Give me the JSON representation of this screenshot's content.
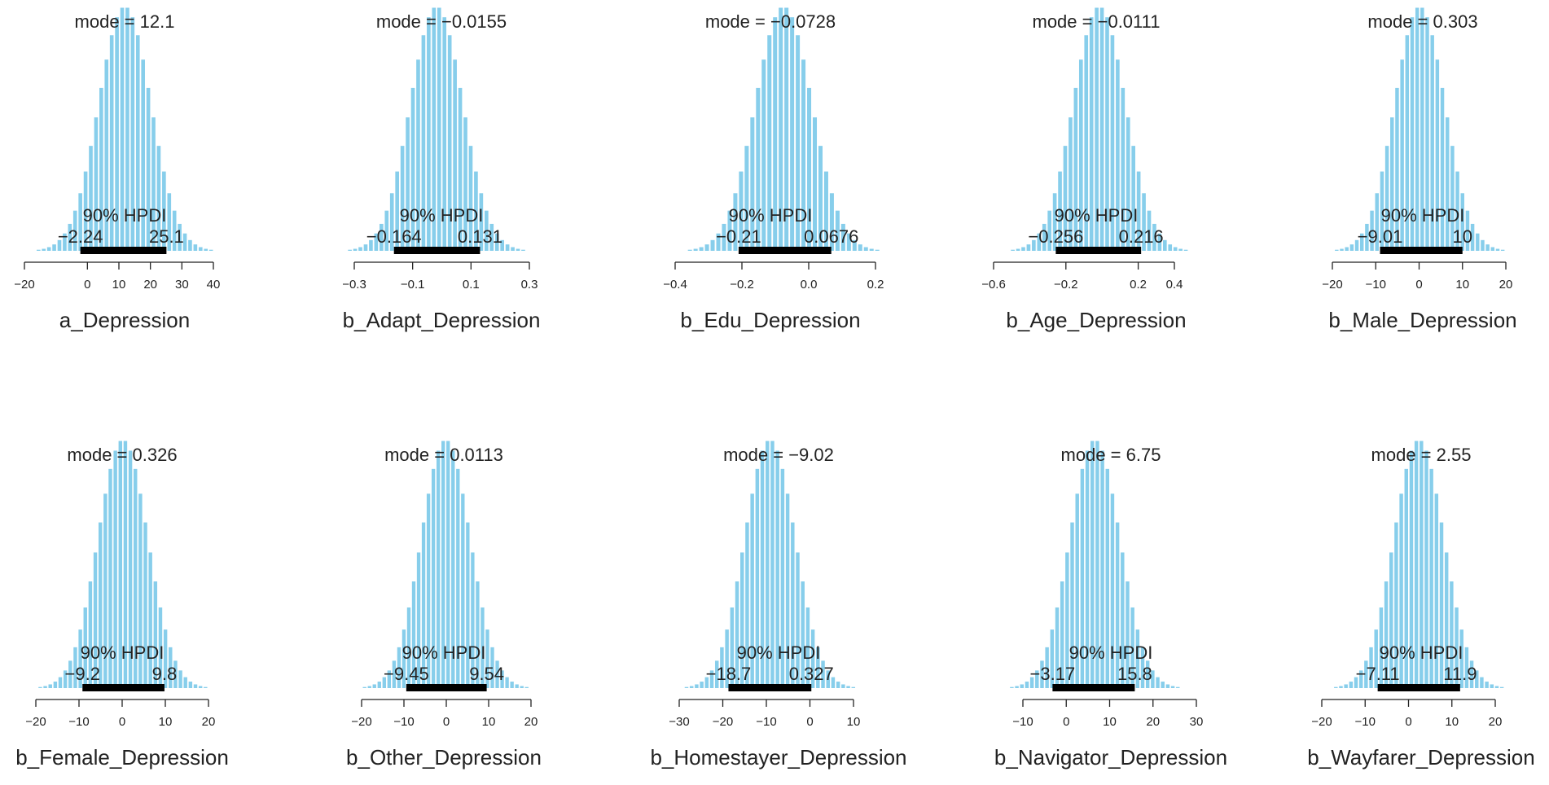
{
  "chart_data": [
    {
      "type": "histogram",
      "xlabel": "a_Depression",
      "mode_text": "mode = 12.1",
      "mode": 12.1,
      "hpdi_label": "90% HPDI",
      "hpdi_low_text": "−2.24",
      "hpdi_high_text": "25.1",
      "hpdi": [
        -2.24,
        25.1
      ],
      "xlim": [
        -20,
        40
      ],
      "xticks": [
        -20,
        0,
        10,
        20,
        30,
        40
      ],
      "xtick_labels": [
        "−20",
        "0",
        "10",
        "20",
        "30",
        "40"
      ],
      "sd": 8.3
    },
    {
      "type": "histogram",
      "xlabel": "b_Adapt_Depression",
      "mode_text": "mode = −0.0155",
      "mode": -0.0155,
      "hpdi_label": "90% HPDI",
      "hpdi_low_text": "−0.164",
      "hpdi_high_text": "0.131",
      "hpdi": [
        -0.164,
        0.131
      ],
      "xlim": [
        -0.3,
        0.3
      ],
      "xticks": [
        -0.3,
        -0.1,
        0.1,
        0.3
      ],
      "xtick_labels": [
        "−0.3",
        "−0.1",
        "0.1",
        "0.3"
      ],
      "sd": 0.09
    },
    {
      "type": "histogram",
      "xlabel": "b_Edu_Depression",
      "mode_text": "mode = −0.0728",
      "mode": -0.0728,
      "hpdi_label": "90% HPDI",
      "hpdi_low_text": "−0.21",
      "hpdi_high_text": "0.0676",
      "hpdi": [
        -0.21,
        0.0676
      ],
      "xlim": [
        -0.4,
        0.2
      ],
      "xticks": [
        -0.4,
        -0.2,
        0.0,
        0.2
      ],
      "xtick_labels": [
        "−0.4",
        "−0.2",
        "0.0",
        "0.2"
      ],
      "sd": 0.085
    },
    {
      "type": "histogram",
      "xlabel": "b_Age_Depression",
      "mode_text": "mode = −0.0111",
      "mode": -0.0111,
      "hpdi_label": "90% HPDI",
      "hpdi_low_text": "−0.256",
      "hpdi_high_text": "0.216",
      "hpdi": [
        -0.256,
        0.216
      ],
      "xlim": [
        -0.6,
        0.4
      ],
      "xticks": [
        -0.6,
        -0.2,
        0.2,
        0.4
      ],
      "xtick_labels": [
        "−0.6",
        "−0.2",
        "0.2",
        "0.4"
      ],
      "sd": 0.145
    },
    {
      "type": "histogram",
      "xlabel": "b_Male_Depression",
      "mode_text": "mode = 0.303",
      "mode": 0.303,
      "hpdi_label": "90% HPDI",
      "hpdi_low_text": "−9.01",
      "hpdi_high_text": "10",
      "hpdi": [
        -9.01,
        10
      ],
      "xlim": [
        -20,
        20
      ],
      "xticks": [
        -20,
        -10,
        0,
        10,
        20
      ],
      "xtick_labels": [
        "−20",
        "−10",
        "0",
        "10",
        "20"
      ],
      "sd": 5.8
    },
    {
      "type": "histogram",
      "xlabel": "b_Female_Depression",
      "mode_text": "mode = 0.326",
      "mode": 0.326,
      "hpdi_label": "90% HPDI",
      "hpdi_low_text": "−9.2",
      "hpdi_high_text": "9.8",
      "hpdi": [
        -9.2,
        9.8
      ],
      "xlim": [
        -20,
        20
      ],
      "xticks": [
        -20,
        -10,
        0,
        10,
        20
      ],
      "xtick_labels": [
        "−20",
        "−10",
        "0",
        "10",
        "20"
      ],
      "sd": 5.8
    },
    {
      "type": "histogram",
      "xlabel": "b_Other_Depression",
      "mode_text": "mode = 0.0113",
      "mode": 0.0113,
      "hpdi_label": "90% HPDI",
      "hpdi_low_text": "−9.45",
      "hpdi_high_text": "9.54",
      "hpdi": [
        -9.45,
        9.54
      ],
      "xlim": [
        -20,
        20
      ],
      "xticks": [
        -20,
        -10,
        0,
        10,
        20
      ],
      "xtick_labels": [
        "−20",
        "−10",
        "0",
        "10",
        "20"
      ],
      "sd": 5.8
    },
    {
      "type": "histogram",
      "xlabel": "b_Homestayer_Depression",
      "mode_text": "mode = −9.02",
      "mode": -9.02,
      "hpdi_label": "90% HPDI",
      "hpdi_low_text": "−18.7",
      "hpdi_high_text": "0.327",
      "hpdi": [
        -18.7,
        0.327
      ],
      "xlim": [
        -30,
        10
      ],
      "xticks": [
        -30,
        -20,
        -10,
        0,
        10
      ],
      "xtick_labels": [
        "−30",
        "−20",
        "−10",
        "0",
        "10"
      ],
      "sd": 5.8
    },
    {
      "type": "histogram",
      "xlabel": "b_Navigator_Depression",
      "mode_text": "mode = 6.75",
      "mode": 6.75,
      "hpdi_label": "90% HPDI",
      "hpdi_low_text": "−3.17",
      "hpdi_high_text": "15.8",
      "hpdi": [
        -3.17,
        15.8
      ],
      "xlim": [
        -10,
        30
      ],
      "xticks": [
        -10,
        0,
        10,
        20,
        30
      ],
      "xtick_labels": [
        "−10",
        "0",
        "10",
        "20",
        "30"
      ],
      "sd": 5.8
    },
    {
      "type": "histogram",
      "xlabel": "b_Wayfarer_Depression",
      "mode_text": "mode = 2.55",
      "mode": 2.55,
      "hpdi_label": "90% HPDI",
      "hpdi_low_text": "−7.11",
      "hpdi_high_text": "11.9",
      "hpdi": [
        -7.11,
        11.9
      ],
      "xlim": [
        -20,
        20
      ],
      "xticks": [
        -20,
        -10,
        0,
        10,
        20
      ],
      "xtick_labels": [
        "−20",
        "−10",
        "0",
        "10",
        "20"
      ],
      "sd": 5.8
    }
  ],
  "colors": {
    "bars": "#87ceeb",
    "hpdi_bar": "#000000",
    "axis": "#222222",
    "text": "#222222"
  }
}
